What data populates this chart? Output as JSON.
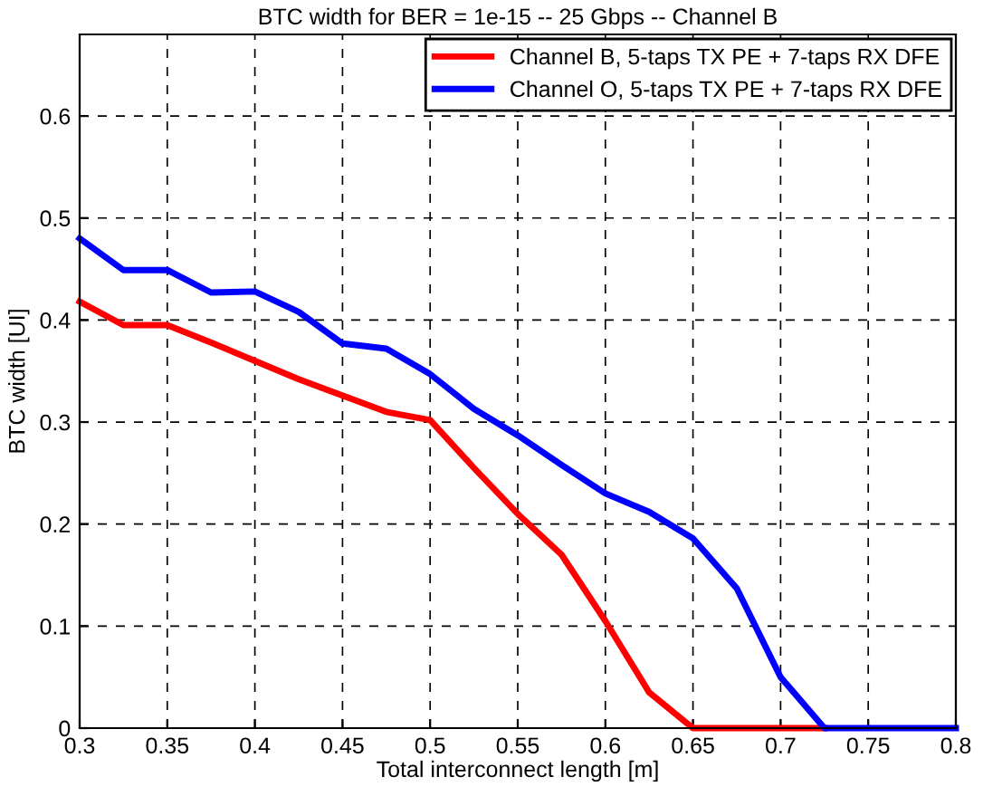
{
  "chart_data": {
    "type": "line",
    "title": "BTC width for BER = 1e-15 -- 25 Gbps -- Channel B",
    "xlabel": "Total interconnect length [m]",
    "ylabel": "BTC width [UI]",
    "x": [
      0.3,
      0.325,
      0.35,
      0.375,
      0.4,
      0.425,
      0.45,
      0.475,
      0.5,
      0.525,
      0.55,
      0.575,
      0.6,
      0.625,
      0.65,
      0.675,
      0.7,
      0.725,
      0.75,
      0.775,
      0.8
    ],
    "series": [
      {
        "name": "Channel B, 5-taps TX PE + 7-taps RX DFE",
        "color": "#ff0000",
        "values": [
          0.418,
          0.395,
          0.395,
          0.378,
          0.36,
          0.342,
          0.326,
          0.31,
          0.302,
          0.255,
          0.21,
          0.17,
          0.105,
          0.035,
          0,
          0,
          0,
          0,
          null,
          null,
          null
        ]
      },
      {
        "name": "Channel O, 5-taps TX PE + 7-taps RX DFE",
        "color": "#0000ff",
        "values": [
          0.48,
          0.449,
          0.449,
          0.427,
          0.428,
          0.408,
          0.377,
          0.372,
          0.347,
          0.313,
          0.287,
          0.258,
          0.23,
          0.212,
          0.186,
          0.137,
          0.05,
          0,
          0,
          0,
          0
        ]
      }
    ],
    "xlim": [
      0.3,
      0.8
    ],
    "ylim": [
      0,
      0.68
    ],
    "xticks": [
      0.3,
      0.35,
      0.4,
      0.45,
      0.5,
      0.55,
      0.6,
      0.65,
      0.7,
      0.75,
      0.8
    ],
    "yticks": [
      0,
      0.1,
      0.2,
      0.3,
      0.4,
      0.5,
      0.6
    ],
    "grid": true,
    "legend": "top right",
    "line_style": "solid",
    "marker": "none"
  }
}
